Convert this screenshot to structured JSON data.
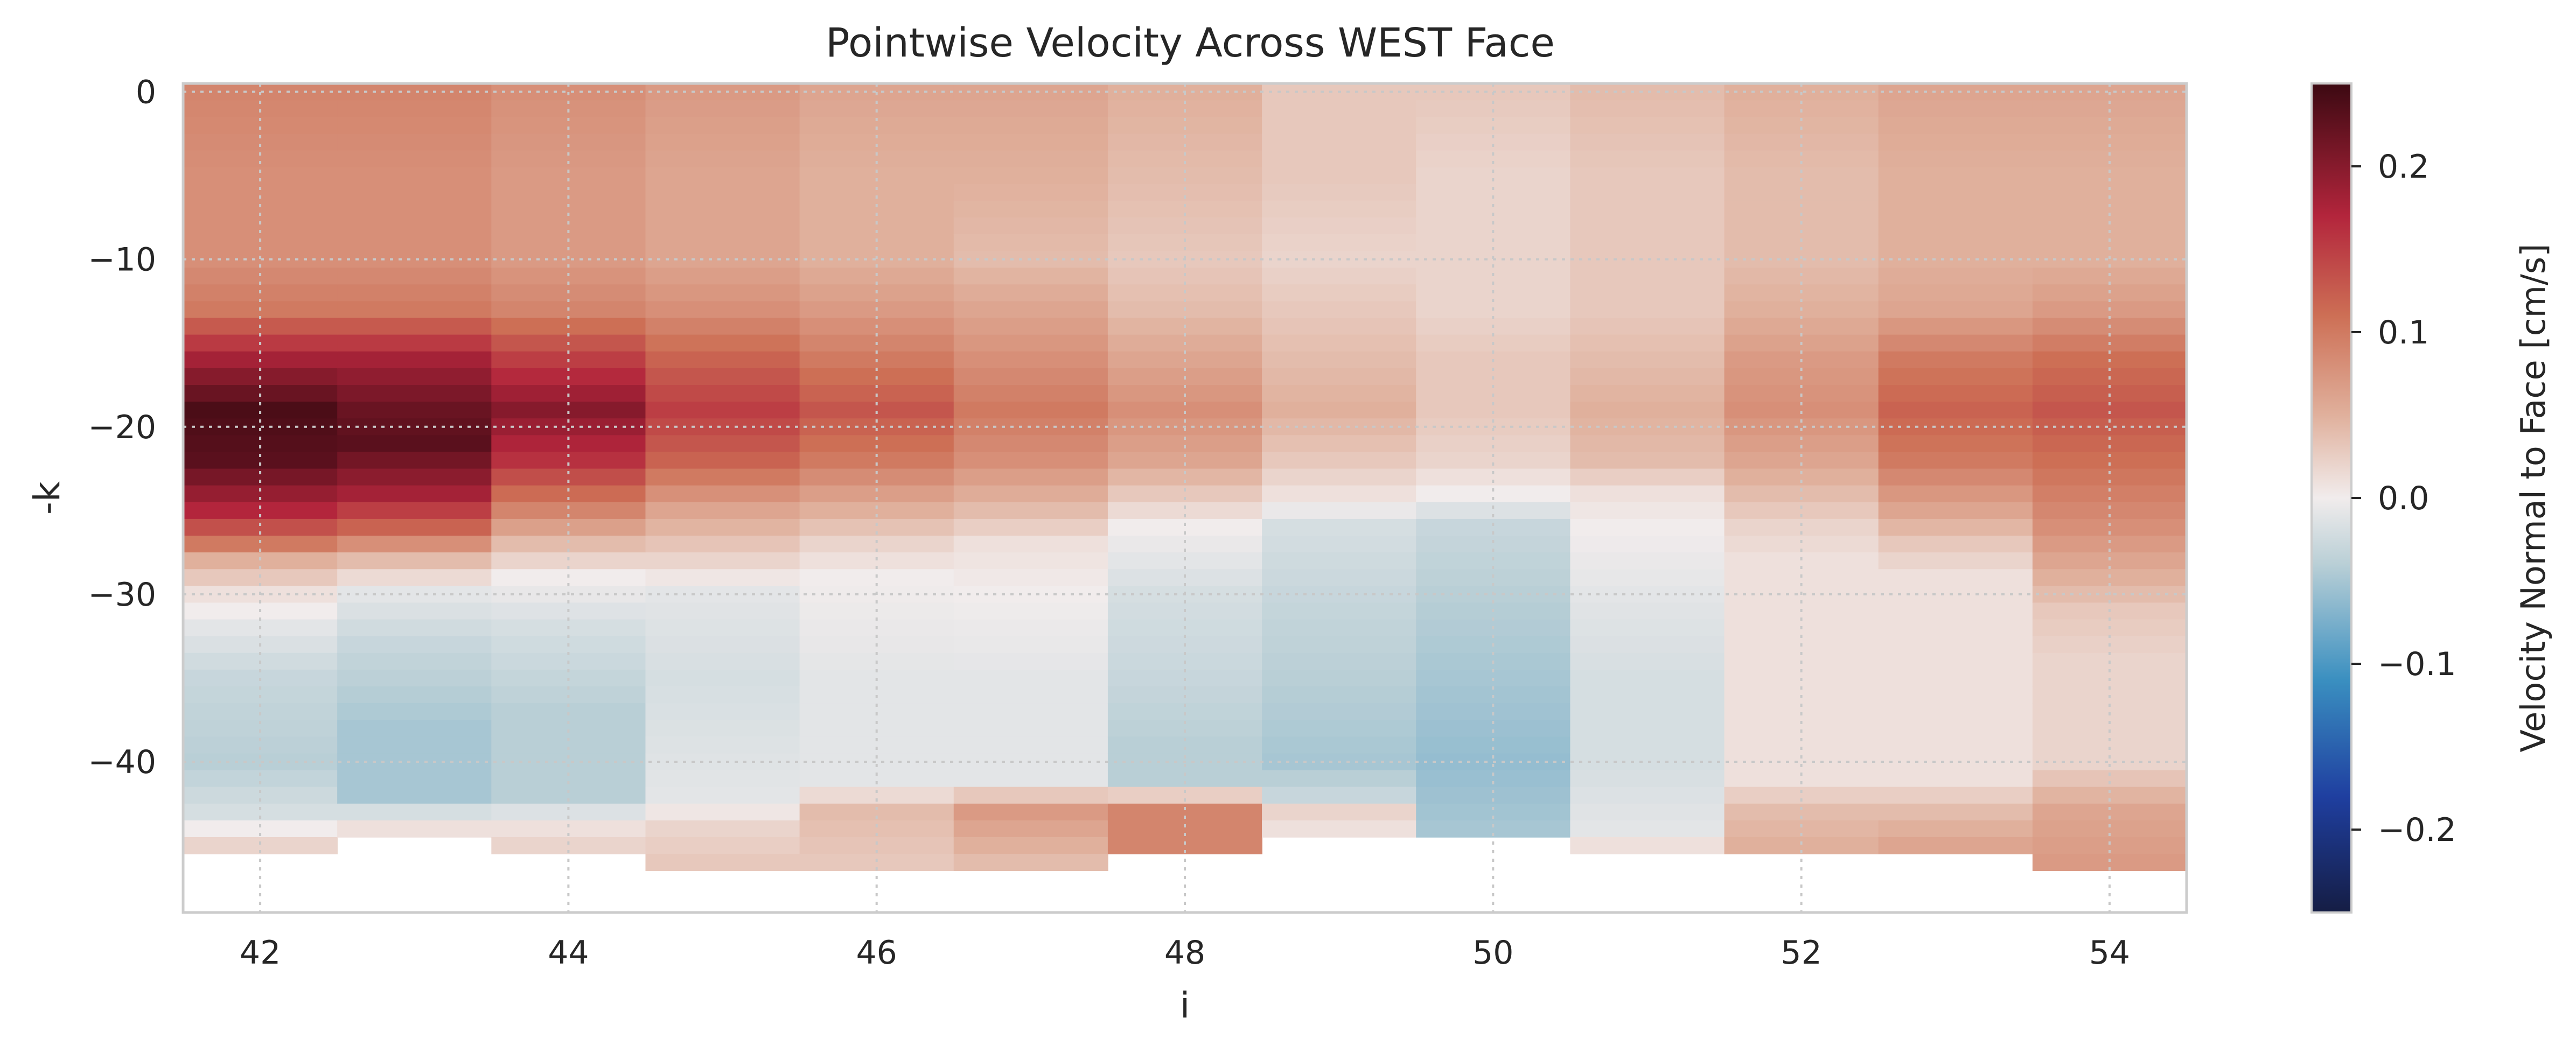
{
  "chart_data": {
    "type": "heatmap",
    "title": "Pointwise Velocity Across WEST Face",
    "xlabel": "i",
    "ylabel": "-k",
    "colorbar_label": "Velocity Normal to Face [cm/s]",
    "colormap": "balance (diverging: navy - blue - white - red - dark maroon)",
    "vmin": -0.25,
    "vmax": 0.25,
    "xlim": [
      41.5,
      54.5
    ],
    "ylim": [
      -49,
      0.5
    ],
    "x_ticks": [
      42,
      44,
      46,
      48,
      50,
      52,
      54
    ],
    "x_tick_labels": [
      "42",
      "44",
      "46",
      "48",
      "50",
      "52",
      "54"
    ],
    "y_ticks": [
      0,
      -10,
      -20,
      -30,
      -40
    ],
    "y_tick_labels": [
      "0",
      "−10",
      "−20",
      "−30",
      "−40"
    ],
    "colorbar_ticks": [
      0.2,
      0.1,
      0.0,
      -0.1,
      -0.2
    ],
    "colorbar_tick_labels": [
      "0.2",
      "0.1",
      "0.0",
      "−0.1",
      "−0.2"
    ],
    "grid": true,
    "columns": [
      {
        "i": 42,
        "depth": 46,
        "profile": [
          [
            0,
            0.09
          ],
          [
            5,
            0.08
          ],
          [
            10,
            0.08
          ],
          [
            13,
            0.1
          ],
          [
            16,
            0.18
          ],
          [
            19,
            0.24
          ],
          [
            22,
            0.23
          ],
          [
            25,
            0.17
          ],
          [
            27,
            0.1
          ],
          [
            28,
            0.05
          ],
          [
            30,
            0.01
          ],
          [
            32,
            -0.01
          ],
          [
            35,
            -0.03
          ],
          [
            40,
            -0.04
          ],
          [
            43,
            -0.02
          ],
          [
            45,
            0.02
          ]
        ]
      },
      {
        "i": 43,
        "depth": 45,
        "profile": [
          [
            0,
            0.09
          ],
          [
            5,
            0.08
          ],
          [
            10,
            0.08
          ],
          [
            13,
            0.1
          ],
          [
            16,
            0.18
          ],
          [
            19,
            0.22
          ],
          [
            21,
            0.23
          ],
          [
            24,
            0.18
          ],
          [
            26,
            0.12
          ],
          [
            28,
            0.04
          ],
          [
            30,
            -0.01
          ],
          [
            33,
            -0.03
          ],
          [
            38,
            -0.05
          ],
          [
            42,
            -0.05
          ],
          [
            44,
            0.01
          ]
        ]
      },
      {
        "i": 44,
        "depth": 46,
        "profile": [
          [
            0,
            0.08
          ],
          [
            5,
            0.07
          ],
          [
            10,
            0.07
          ],
          [
            13,
            0.09
          ],
          [
            16,
            0.15
          ],
          [
            19,
            0.2
          ],
          [
            22,
            0.16
          ],
          [
            25,
            0.09
          ],
          [
            27,
            0.04
          ],
          [
            29,
            0.0
          ],
          [
            32,
            -0.02
          ],
          [
            37,
            -0.04
          ],
          [
            42,
            -0.04
          ],
          [
            44,
            0.01
          ],
          [
            45,
            0.02
          ]
        ]
      },
      {
        "i": 45,
        "depth": 47,
        "profile": [
          [
            0,
            0.07
          ],
          [
            5,
            0.06
          ],
          [
            10,
            0.06
          ],
          [
            13,
            0.08
          ],
          [
            16,
            0.12
          ],
          [
            19,
            0.15
          ],
          [
            22,
            0.12
          ],
          [
            25,
            0.06
          ],
          [
            28,
            0.02
          ],
          [
            30,
            -0.01
          ],
          [
            35,
            -0.02
          ],
          [
            42,
            -0.01
          ],
          [
            44,
            0.02
          ],
          [
            46,
            0.03
          ]
        ]
      },
      {
        "i": 46,
        "depth": 47,
        "profile": [
          [
            0,
            0.06
          ],
          [
            5,
            0.05
          ],
          [
            10,
            0.05
          ],
          [
            13,
            0.07
          ],
          [
            16,
            0.1
          ],
          [
            19,
            0.13
          ],
          [
            22,
            0.1
          ],
          [
            25,
            0.05
          ],
          [
            27,
            0.02
          ],
          [
            29,
            0.0
          ],
          [
            35,
            -0.01
          ],
          [
            41,
            -0.01
          ],
          [
            43,
            0.04
          ],
          [
            46,
            0.03
          ]
        ]
      },
      {
        "i": 47,
        "depth": 47,
        "profile": [
          [
            0,
            0.06
          ],
          [
            5,
            0.05
          ],
          [
            10,
            0.04
          ],
          [
            13,
            0.06
          ],
          [
            16,
            0.08
          ],
          [
            19,
            0.1
          ],
          [
            22,
            0.08
          ],
          [
            25,
            0.04
          ],
          [
            27,
            0.01
          ],
          [
            30,
            0.0
          ],
          [
            35,
            -0.01
          ],
          [
            41,
            -0.01
          ],
          [
            43,
            0.07
          ],
          [
            46,
            0.04
          ]
        ]
      },
      {
        "i": 48,
        "depth": 46,
        "profile": [
          [
            0,
            0.05
          ],
          [
            5,
            0.04
          ],
          [
            10,
            0.03
          ],
          [
            13,
            0.04
          ],
          [
            16,
            0.06
          ],
          [
            19,
            0.08
          ],
          [
            22,
            0.06
          ],
          [
            24,
            0.03
          ],
          [
            26,
            0.0
          ],
          [
            30,
            -0.02
          ],
          [
            35,
            -0.03
          ],
          [
            39,
            -0.04
          ],
          [
            41,
            -0.04
          ],
          [
            43,
            0.09
          ],
          [
            45,
            0.09
          ]
        ]
      },
      {
        "i": 49,
        "depth": 45,
        "profile": [
          [
            0,
            0.03
          ],
          [
            5,
            0.03
          ],
          [
            10,
            0.02
          ],
          [
            13,
            0.03
          ],
          [
            16,
            0.04
          ],
          [
            19,
            0.05
          ],
          [
            22,
            0.03
          ],
          [
            24,
            0.01
          ],
          [
            26,
            -0.02
          ],
          [
            30,
            -0.03
          ],
          [
            35,
            -0.04
          ],
          [
            40,
            -0.05
          ],
          [
            42,
            -0.03
          ],
          [
            43,
            0.02
          ],
          [
            44,
            0.01
          ]
        ]
      },
      {
        "i": 50,
        "depth": 45,
        "profile": [
          [
            0,
            0.03
          ],
          [
            5,
            0.02
          ],
          [
            10,
            0.02
          ],
          [
            13,
            0.02
          ],
          [
            16,
            0.03
          ],
          [
            19,
            0.03
          ],
          [
            22,
            0.02
          ],
          [
            24,
            0.0
          ],
          [
            26,
            -0.03
          ],
          [
            30,
            -0.04
          ],
          [
            35,
            -0.05
          ],
          [
            40,
            -0.06
          ],
          [
            44,
            -0.05
          ]
        ]
      },
      {
        "i": 51,
        "depth": 46,
        "profile": [
          [
            0,
            0.04
          ],
          [
            5,
            0.03
          ],
          [
            10,
            0.03
          ],
          [
            13,
            0.03
          ],
          [
            16,
            0.04
          ],
          [
            19,
            0.05
          ],
          [
            22,
            0.04
          ],
          [
            24,
            0.01
          ],
          [
            26,
            0.0
          ],
          [
            30,
            -0.01
          ],
          [
            35,
            -0.02
          ],
          [
            40,
            -0.02
          ],
          [
            44,
            -0.01
          ],
          [
            45,
            0.01
          ]
        ]
      },
      {
        "i": 52,
        "depth": 46,
        "profile": [
          [
            0,
            0.05
          ],
          [
            5,
            0.04
          ],
          [
            10,
            0.04
          ],
          [
            13,
            0.05
          ],
          [
            16,
            0.07
          ],
          [
            19,
            0.08
          ],
          [
            22,
            0.06
          ],
          [
            24,
            0.04
          ],
          [
            26,
            0.02
          ],
          [
            28,
            0.01
          ],
          [
            35,
            0.01
          ],
          [
            41,
            0.01
          ],
          [
            43,
            0.04
          ],
          [
            45,
            0.05
          ]
        ]
      },
      {
        "i": 53,
        "depth": 46,
        "profile": [
          [
            0,
            0.06
          ],
          [
            5,
            0.05
          ],
          [
            10,
            0.05
          ],
          [
            13,
            0.06
          ],
          [
            16,
            0.1
          ],
          [
            19,
            0.12
          ],
          [
            22,
            0.1
          ],
          [
            25,
            0.06
          ],
          [
            27,
            0.03
          ],
          [
            29,
            0.01
          ],
          [
            35,
            0.01
          ],
          [
            41,
            0.01
          ],
          [
            43,
            0.04
          ],
          [
            45,
            0.06
          ]
        ]
      },
      {
        "i": 54,
        "depth": 47,
        "profile": [
          [
            0,
            0.06
          ],
          [
            5,
            0.05
          ],
          [
            10,
            0.05
          ],
          [
            13,
            0.07
          ],
          [
            16,
            0.11
          ],
          [
            19,
            0.13
          ],
          [
            22,
            0.11
          ],
          [
            26,
            0.08
          ],
          [
            29,
            0.05
          ],
          [
            31,
            0.03
          ],
          [
            34,
            0.02
          ],
          [
            40,
            0.02
          ],
          [
            43,
            0.06
          ],
          [
            46,
            0.07
          ]
        ]
      }
    ]
  }
}
